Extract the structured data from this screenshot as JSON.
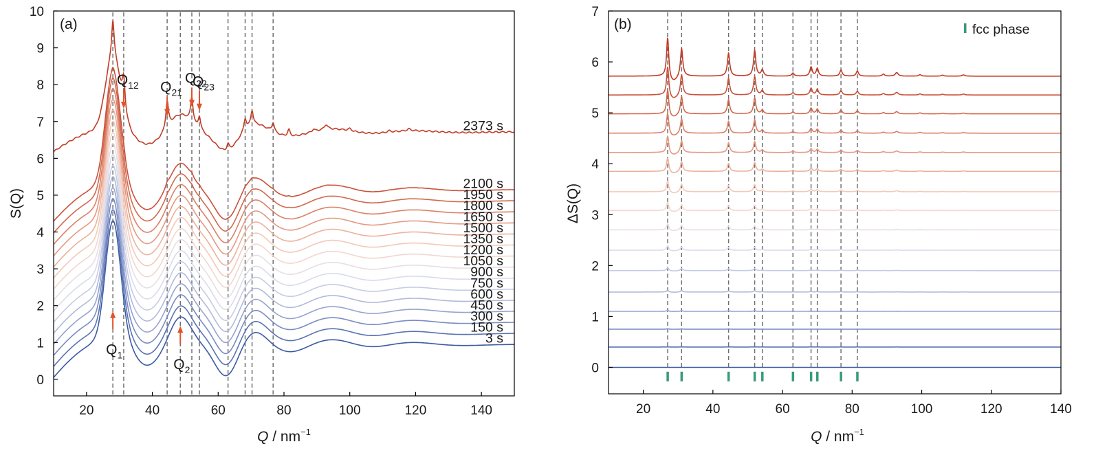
{
  "chart_data": [
    {
      "type": "line",
      "panel_label": "(a)",
      "xlabel_italic": "Q",
      "xlabel_rest": " / nm",
      "xlabel_sup": "−1",
      "ylabel": "S(Q)",
      "xlim": [
        10,
        150
      ],
      "ylim": [
        -0.45,
        10
      ],
      "x_ticks": [
        20,
        40,
        60,
        80,
        100,
        120,
        140
      ],
      "y_ticks": [
        0,
        1,
        2,
        3,
        4,
        5,
        6,
        7,
        8,
        9,
        10
      ],
      "grid": false,
      "reference_lines_x": [
        28,
        31.3,
        44.5,
        48.5,
        52,
        54.3,
        63,
        68.2,
        70.3,
        76.7
      ],
      "series": [
        {
          "name": "3 s",
          "offset": 0.0
        },
        {
          "name": "150 s",
          "offset": 0.3
        },
        {
          "name": "300 s",
          "offset": 0.6
        },
        {
          "name": "450 s",
          "offset": 0.9
        },
        {
          "name": "600 s",
          "offset": 1.2
        },
        {
          "name": "750 s",
          "offset": 1.5
        },
        {
          "name": "900 s",
          "offset": 1.8
        },
        {
          "name": "1050 s",
          "offset": 2.1
        },
        {
          "name": "1200 s",
          "offset": 2.4
        },
        {
          "name": "1350 s",
          "offset": 2.7
        },
        {
          "name": "1500 s",
          "offset": 3.0
        },
        {
          "name": "1650 s",
          "offset": 3.3
        },
        {
          "name": "1800 s",
          "offset": 3.6
        },
        {
          "name": "1950 s",
          "offset": 3.9
        },
        {
          "name": "2100 s",
          "offset": 4.2
        },
        {
          "name": "2373 s",
          "offset": 5.75
        }
      ],
      "annotations": [
        {
          "label": "Q",
          "sub": "1",
          "x": 28,
          "y": 1.85
        },
        {
          "label": "Q",
          "sub": "2",
          "x": 48.5,
          "y": 1.45
        },
        {
          "label": "Q",
          "sub": "12",
          "x": 31.3,
          "y": 7.35
        },
        {
          "label": "Q",
          "sub": "21",
          "x": 44.5,
          "y": 7.15
        },
        {
          "label": "Q",
          "sub": "22",
          "x": 52,
          "y": 7.4
        },
        {
          "label": "Q",
          "sub": "23",
          "x": 54.3,
          "y": 7.3
        }
      ]
    },
    {
      "type": "line",
      "panel_label": "(b)",
      "xlabel_italic": "Q",
      "xlabel_rest": " / nm",
      "xlabel_sup": "−1",
      "ylabel": "ΔS(Q)",
      "xlim": [
        10,
        140
      ],
      "ylim": [
        -0.52,
        7
      ],
      "x_ticks": [
        20,
        40,
        60,
        80,
        100,
        120,
        140
      ],
      "y_ticks": [
        0,
        1,
        2,
        3,
        4,
        5,
        6,
        7
      ],
      "grid": false,
      "legend": {
        "label": "fcc phase",
        "position": "top-right",
        "color": "#3a9a78"
      },
      "fcc_peaks": [
        27,
        31,
        44.5,
        52,
        54.2,
        63,
        68.2,
        70,
        76.8,
        81.5
      ],
      "offsets": [
        0,
        0.4,
        0.75,
        1.1,
        1.48,
        1.9,
        2.3,
        2.7,
        3.08,
        3.45,
        3.85,
        4.22,
        4.6,
        4.98,
        5.35,
        5.72
      ]
    }
  ]
}
